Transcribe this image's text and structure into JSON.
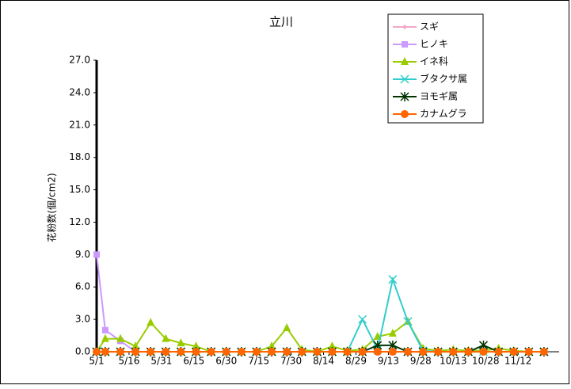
{
  "chart_data": {
    "type": "line",
    "title": "立川",
    "y_label": "花粉数(個/cm2)",
    "x": [
      0,
      4,
      11,
      18,
      25,
      32,
      39,
      46,
      53,
      60,
      67,
      74,
      81,
      88,
      95,
      102,
      109,
      116,
      123,
      130,
      137,
      144,
      151,
      158,
      165,
      172,
      179,
      186,
      193,
      200,
      207
    ],
    "xlim": [
      0,
      214
    ],
    "xticks": [
      {
        "value": 0,
        "label": "5/1"
      },
      {
        "value": 15,
        "label": "5/16"
      },
      {
        "value": 30,
        "label": "5/31"
      },
      {
        "value": 45,
        "label": "6/15"
      },
      {
        "value": 60,
        "label": "6/30"
      },
      {
        "value": 75,
        "label": "7/15"
      },
      {
        "value": 90,
        "label": "7/30"
      },
      {
        "value": 105,
        "label": "8/14"
      },
      {
        "value": 120,
        "label": "8/29"
      },
      {
        "value": 135,
        "label": "9/13"
      },
      {
        "value": 150,
        "label": "9/28"
      },
      {
        "value": 165,
        "label": "10/13"
      },
      {
        "value": 180,
        "label": "10/28"
      },
      {
        "value": 195,
        "label": "11/12"
      }
    ],
    "ylim": [
      0,
      27
    ],
    "yticks": [
      {
        "value": 0,
        "label": "0.0"
      },
      {
        "value": 3,
        "label": "3.0"
      },
      {
        "value": 6,
        "label": "6.0"
      },
      {
        "value": 9,
        "label": "9.0"
      },
      {
        "value": 12,
        "label": "12.0"
      },
      {
        "value": 15,
        "label": "15.0"
      },
      {
        "value": 18,
        "label": "18.0"
      },
      {
        "value": 21,
        "label": "21.0"
      },
      {
        "value": 24,
        "label": "24.0"
      },
      {
        "value": 27,
        "label": "27.0"
      }
    ],
    "legend": "upper right",
    "series": [
      {
        "name": "スギ",
        "color": "#f4a6c8",
        "marker": "diamond",
        "values": [
          0,
          0,
          0,
          0,
          0,
          0,
          0,
          0,
          0,
          0,
          0,
          0,
          0,
          0,
          0,
          0,
          0,
          0,
          0,
          0,
          0,
          0,
          0,
          0,
          0,
          0,
          0,
          0,
          0,
          0,
          0
        ]
      },
      {
        "name": "ヒノキ",
        "color": "#cc99ff",
        "marker": "square",
        "values": [
          9.0,
          2.0,
          1.0,
          0,
          0,
          0,
          0,
          0,
          0,
          0,
          0,
          0,
          0,
          0,
          0,
          0,
          0,
          0,
          0,
          0,
          0,
          0,
          0,
          0,
          0,
          0,
          0,
          0,
          0,
          0,
          0
        ]
      },
      {
        "name": "イネ科",
        "color": "#99cc00",
        "marker": "triangle",
        "values": [
          0,
          1.2,
          1.2,
          0.5,
          2.7,
          1.2,
          0.8,
          0.5,
          0,
          0,
          0,
          0,
          0.5,
          2.2,
          0.2,
          0,
          0.5,
          0.1,
          0.2,
          1.4,
          1.7,
          2.8,
          0.3,
          0.1,
          0.2,
          0.1,
          0.1,
          0.3,
          0.1,
          0,
          0
        ]
      },
      {
        "name": "ブタクサ属",
        "color": "#33cccc",
        "marker": "x",
        "values": [
          0,
          0,
          0,
          0,
          0,
          0,
          0,
          0,
          0,
          0,
          0,
          0,
          0,
          0,
          0,
          0,
          0,
          0,
          3.0,
          0.2,
          6.7,
          2.8,
          0.1,
          0,
          0,
          0,
          0,
          0,
          0,
          0,
          0
        ]
      },
      {
        "name": "ヨモギ属",
        "color": "#003300",
        "marker": "star",
        "values": [
          0,
          0,
          0,
          0,
          0,
          0,
          0,
          0,
          0,
          0,
          0,
          0,
          0,
          0,
          0,
          0,
          0,
          0,
          0,
          0.6,
          0.6,
          0,
          0,
          0,
          0,
          0,
          0.6,
          0,
          0,
          0,
          0
        ]
      },
      {
        "name": "カナムグラ",
        "color": "#ff6600",
        "marker": "circle",
        "values": [
          0,
          0,
          0,
          0,
          0,
          0,
          0,
          0,
          0,
          0,
          0,
          0,
          0,
          0,
          0,
          0,
          0,
          0,
          0,
          0,
          0,
          0,
          0,
          0,
          0,
          0,
          0,
          0,
          0,
          0,
          0
        ]
      }
    ]
  }
}
